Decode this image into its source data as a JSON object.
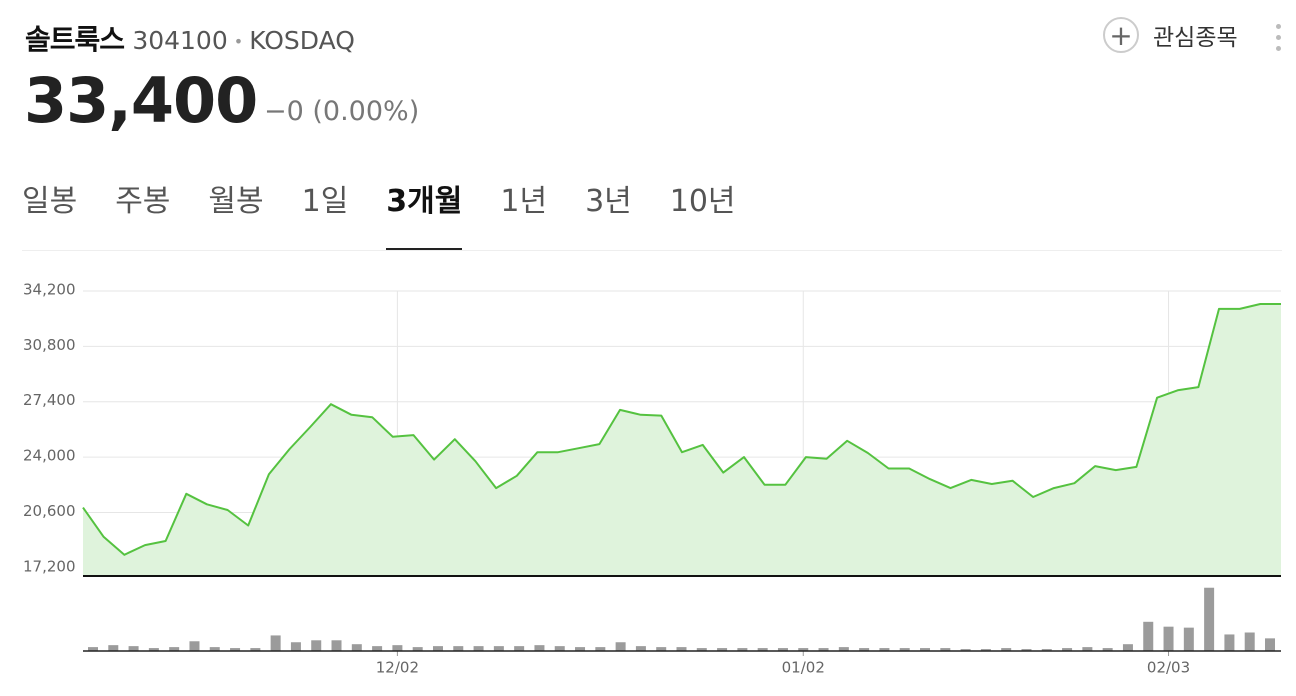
{
  "header": {
    "name": "솔트룩스",
    "code": "304100",
    "separator": "•",
    "market": "KOSDAQ",
    "watch": "관심종목",
    "price": "33,400",
    "change": "−0 (0.00%)"
  },
  "tabs": [
    "일봉",
    "주봉",
    "월봉",
    "1일",
    "3개월",
    "1년",
    "3년",
    "10년"
  ],
  "active_tab": 4,
  "chart_data": [
    {
      "type": "area",
      "color": "#55c240",
      "fill": "#dff3dc",
      "values": [
        20900,
        19100,
        18000,
        18600,
        18850,
        21750,
        21100,
        20750,
        19800,
        22950,
        24500,
        25850,
        27250,
        26600,
        26450,
        25250,
        25350,
        23850,
        25100,
        23750,
        22100,
        22850,
        24300,
        24300,
        24550,
        24800,
        26900,
        26600,
        26550,
        24300,
        24750,
        23050,
        24000,
        22300,
        22300,
        24000,
        23900,
        25000,
        24250,
        23300,
        23300,
        22650,
        22100,
        22600,
        22350,
        22550,
        21550,
        22100,
        22400,
        23450,
        23200,
        23400,
        27650,
        28100,
        28300,
        33100,
        33100,
        33400,
        33400
      ],
      "ylim": [
        16700,
        34200
      ],
      "yticks": [
        {
          "value": 17200,
          "label": "17,200"
        },
        {
          "value": 20600,
          "label": "20,600"
        },
        {
          "value": 24000,
          "label": "24,000"
        },
        {
          "value": 27400,
          "label": "27,400"
        },
        {
          "value": 30800,
          "label": "30,800"
        },
        {
          "value": 34200,
          "label": "34,200"
        }
      ],
      "grid": true
    },
    {
      "type": "bar",
      "color": "#9b9b9b",
      "categories": [
        null,
        null,
        null,
        null,
        null,
        null,
        null,
        null,
        null,
        null,
        null,
        null,
        null,
        null,
        null,
        "12/02",
        null,
        null,
        null,
        null,
        null,
        null,
        null,
        null,
        null,
        null,
        null,
        null,
        null,
        null,
        null,
        null,
        null,
        null,
        null,
        "01/02",
        null,
        null,
        null,
        null,
        null,
        null,
        null,
        null,
        null,
        null,
        null,
        null,
        null,
        null,
        null,
        null,
        null,
        "02/03",
        null,
        null,
        null,
        null,
        null
      ],
      "values": [
        4,
        6,
        5,
        3,
        4,
        10,
        4,
        3,
        3,
        16,
        9,
        11,
        11,
        7,
        5,
        6,
        4,
        5,
        5,
        5,
        5,
        5,
        6,
        5,
        4,
        4,
        9,
        5,
        4,
        4,
        3,
        3,
        3,
        3,
        3,
        3,
        3,
        4,
        3,
        3,
        3,
        3,
        3,
        2,
        2,
        3,
        2,
        2,
        3,
        4,
        3,
        7,
        30,
        25,
        24,
        65,
        17,
        19,
        13
      ],
      "ylim": [
        0,
        75
      ]
    }
  ]
}
